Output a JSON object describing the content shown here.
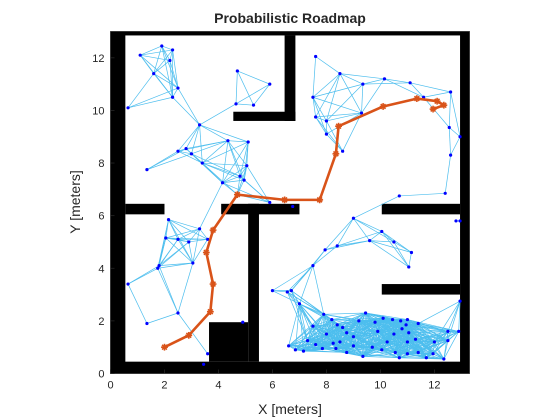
{
  "chart_data": {
    "type": "scatter",
    "title": "Probabilistic Roadmap",
    "xlabel": "X [meters]",
    "ylabel": "Y [meters]",
    "xlim": [
      0,
      13.3
    ],
    "ylim": [
      0,
      13.0
    ],
    "xticks": [
      0,
      2,
      4,
      6,
      8,
      10,
      12
    ],
    "yticks": [
      0,
      2,
      4,
      6,
      8,
      10,
      12
    ],
    "grid": false,
    "colors": {
      "obstacle": "#000000",
      "edges": "#4DBEEE",
      "nodes": "#0000FF",
      "path": "#D95319"
    },
    "obstacles": [
      {
        "x0": 0.0,
        "x1": 13.3,
        "y0": 12.85,
        "y1": 13.3
      },
      {
        "x0": 0.0,
        "x1": 13.3,
        "y0": -0.3,
        "y1": 0.45
      },
      {
        "x0": 0.0,
        "x1": 0.55,
        "y0": -0.3,
        "y1": 13.3
      },
      {
        "x0": 12.95,
        "x1": 13.3,
        "y0": -0.3,
        "y1": 13.3
      },
      {
        "x0": 6.45,
        "x1": 6.85,
        "y0": 9.6,
        "y1": 12.85
      },
      {
        "x0": 4.55,
        "x1": 6.85,
        "y0": 9.6,
        "y1": 9.95
      },
      {
        "x0": 0.55,
        "x1": 2.0,
        "y0": 6.05,
        "y1": 6.45
      },
      {
        "x0": 4.1,
        "x1": 7.0,
        "y0": 6.05,
        "y1": 6.45
      },
      {
        "x0": 5.1,
        "x1": 5.5,
        "y0": 0.45,
        "y1": 6.45
      },
      {
        "x0": 10.05,
        "x1": 12.95,
        "y0": 6.05,
        "y1": 6.45
      },
      {
        "x0": 10.05,
        "x1": 12.95,
        "y0": 3.0,
        "y1": 3.4
      },
      {
        "x0": 3.65,
        "x1": 5.1,
        "y0": 0.45,
        "y1": 1.95
      }
    ],
    "nodes": [
      [
        1.1,
        12.1
      ],
      [
        1.9,
        12.45
      ],
      [
        2.3,
        12.3
      ],
      [
        1.6,
        11.4
      ],
      [
        2.3,
        10.5
      ],
      [
        0.65,
        10.1
      ],
      [
        2.2,
        11.9
      ],
      [
        4.7,
        11.5
      ],
      [
        5.9,
        11.0
      ],
      [
        5.3,
        10.2
      ],
      [
        4.65,
        10.25
      ],
      [
        7.6,
        12.05
      ],
      [
        8.5,
        11.4
      ],
      [
        9.35,
        11.0
      ],
      [
        10.15,
        11.2
      ],
      [
        11.1,
        11.05
      ],
      [
        11.6,
        10.5
      ],
      [
        12.6,
        10.7
      ],
      [
        12.55,
        9.35
      ],
      [
        7.5,
        10.5
      ],
      [
        8.0,
        9.6
      ],
      [
        9.3,
        9.9
      ],
      [
        12.95,
        9.0
      ],
      [
        12.6,
        8.3
      ],
      [
        12.4,
        6.85
      ],
      [
        10.7,
        6.75
      ],
      [
        8.6,
        8.45
      ],
      [
        7.6,
        9.75
      ],
      [
        8.0,
        9.1
      ],
      [
        2.5,
        10.85
      ],
      [
        3.3,
        9.45
      ],
      [
        2.8,
        8.55
      ],
      [
        3.0,
        8.35
      ],
      [
        2.5,
        8.45
      ],
      [
        1.35,
        7.75
      ],
      [
        3.4,
        8.0
      ],
      [
        4.15,
        7.25
      ],
      [
        4.7,
        6.8
      ],
      [
        5.05,
        7.9
      ],
      [
        5.1,
        8.8
      ],
      [
        4.8,
        7.5
      ],
      [
        4.95,
        7.35
      ],
      [
        4.35,
        8.85
      ],
      [
        2.15,
        5.85
      ],
      [
        2.05,
        5.15
      ],
      [
        2.5,
        5.1
      ],
      [
        2.9,
        5.0
      ],
      [
        3.3,
        5.5
      ],
      [
        3.6,
        5.1
      ],
      [
        1.8,
        4.1
      ],
      [
        1.75,
        4.0
      ],
      [
        3.05,
        4.2
      ],
      [
        0.65,
        3.4
      ],
      [
        1.35,
        1.9
      ],
      [
        2.5,
        2.3
      ],
      [
        4.9,
        1.95
      ],
      [
        3.6,
        0.75
      ],
      [
        3.45,
        0.35
      ],
      [
        5.9,
        6.5
      ],
      [
        6.75,
        6.35
      ],
      [
        9.0,
        5.9
      ],
      [
        9.6,
        5.05
      ],
      [
        10.05,
        5.4
      ],
      [
        10.5,
        5.0
      ],
      [
        11.05,
        4.05
      ],
      [
        12.8,
        5.8
      ],
      [
        12.95,
        5.8
      ],
      [
        11.15,
        4.6
      ],
      [
        8.4,
        4.85
      ],
      [
        7.95,
        4.7
      ],
      [
        7.5,
        4.1
      ],
      [
        6.7,
        3.15
      ],
      [
        6.55,
        3.1
      ],
      [
        6.0,
        3.15
      ],
      [
        7.0,
        2.65
      ],
      [
        7.5,
        1.8
      ],
      [
        8.0,
        1.5
      ],
      [
        8.5,
        1.2
      ],
      [
        9.2,
        2.0
      ],
      [
        9.9,
        1.6
      ],
      [
        10.5,
        1.5
      ],
      [
        11.0,
        1.2
      ],
      [
        11.4,
        1.9
      ],
      [
        11.0,
        0.75
      ],
      [
        12.0,
        1.2
      ],
      [
        12.5,
        1.6
      ],
      [
        12.9,
        1.6
      ],
      [
        12.95,
        2.75
      ],
      [
        6.6,
        1.05
      ],
      [
        6.85,
        0.9
      ],
      [
        7.15,
        0.85
      ],
      [
        7.3,
        1.25
      ],
      [
        7.6,
        1.1
      ],
      [
        7.85,
        0.95
      ],
      [
        8.25,
        1.15
      ],
      [
        8.35,
        0.95
      ],
      [
        8.75,
        0.8
      ],
      [
        9.0,
        1.05
      ],
      [
        9.35,
        0.65
      ],
      [
        9.7,
        1.0
      ],
      [
        10.05,
        0.9
      ],
      [
        10.25,
        1.2
      ],
      [
        10.55,
        0.8
      ],
      [
        10.7,
        0.6
      ],
      [
        11.05,
        1.55
      ],
      [
        11.4,
        0.8
      ],
      [
        11.7,
        0.6
      ],
      [
        11.95,
        0.75
      ],
      [
        12.35,
        0.55
      ],
      [
        12.5,
        1.25
      ],
      [
        7.9,
        2.25
      ],
      [
        8.2,
        2.05
      ],
      [
        8.4,
        1.85
      ],
      [
        8.6,
        1.75
      ],
      [
        8.75,
        1.55
      ],
      [
        9.0,
        1.4
      ],
      [
        9.45,
        2.3
      ],
      [
        9.8,
        1.95
      ],
      [
        10.1,
        2.1
      ],
      [
        10.45,
        2.05
      ],
      [
        10.75,
        2.0
      ],
      [
        11.0,
        2.05
      ],
      [
        10.95,
        1.85
      ],
      [
        10.8,
        1.7
      ],
      [
        11.3,
        1.3
      ]
    ],
    "path": [
      [
        2.0,
        1.0
      ],
      [
        2.9,
        1.45
      ],
      [
        3.7,
        2.35
      ],
      [
        3.8,
        3.4
      ],
      [
        3.55,
        4.6
      ],
      [
        3.8,
        5.45
      ],
      [
        4.7,
        6.8
      ],
      [
        6.45,
        6.6
      ],
      [
        7.75,
        6.6
      ],
      [
        8.35,
        8.35
      ],
      [
        8.45,
        9.4
      ],
      [
        10.1,
        10.15
      ],
      [
        11.35,
        10.45
      ],
      [
        12.1,
        10.35
      ],
      [
        12.35,
        10.2
      ],
      [
        11.95,
        10.05
      ]
    ]
  }
}
